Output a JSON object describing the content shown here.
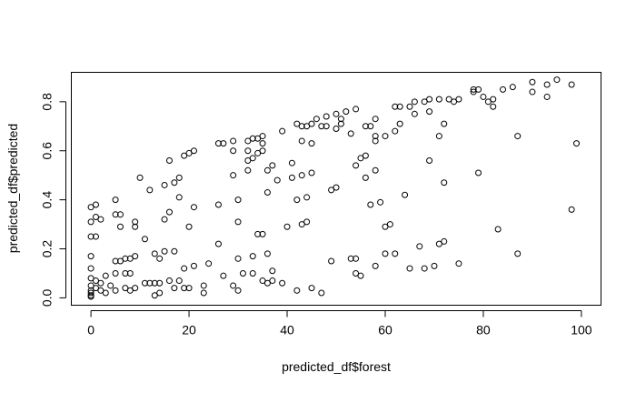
{
  "chart_data": {
    "type": "scatter",
    "title": "",
    "xlabel": "predicted_df$forest",
    "ylabel": "predicted_df$predicted",
    "xlim": [
      -4,
      104
    ],
    "ylim": [
      -0.03,
      0.92
    ],
    "xticks": [
      0,
      20,
      40,
      60,
      80,
      100
    ],
    "yticks": [
      0.0,
      0.2,
      0.4,
      0.6,
      0.8
    ],
    "xtick_labels": [
      "0",
      "20",
      "40",
      "60",
      "80",
      "100"
    ],
    "ytick_labels": [
      "0.0",
      "0.2",
      "0.4",
      "0.6",
      "0.8"
    ],
    "grid": false,
    "legend": null,
    "marker": "open-circle",
    "points": [
      {
        "x": 0,
        "y": 0.37
      },
      {
        "x": 1,
        "y": 0.38
      },
      {
        "x": 0,
        "y": 0.31
      },
      {
        "x": 1,
        "y": 0.33
      },
      {
        "x": 0,
        "y": 0.25
      },
      {
        "x": 1,
        "y": 0.25
      },
      {
        "x": 0,
        "y": 0.17
      },
      {
        "x": 0,
        "y": 0.12
      },
      {
        "x": 0,
        "y": 0.08
      },
      {
        "x": 1,
        "y": 0.07
      },
      {
        "x": 0,
        "y": 0.05
      },
      {
        "x": 0,
        "y": 0.03
      },
      {
        "x": 0,
        "y": 0.02
      },
      {
        "x": 0,
        "y": 0.01
      },
      {
        "x": 0,
        "y": 0.005
      },
      {
        "x": 1,
        "y": 0.04
      },
      {
        "x": 2,
        "y": 0.06
      },
      {
        "x": 2,
        "y": 0.03
      },
      {
        "x": 3,
        "y": 0.02
      },
      {
        "x": 3,
        "y": 0.09
      },
      {
        "x": 2,
        "y": 0.32
      },
      {
        "x": 4,
        "y": 0.05
      },
      {
        "x": 5,
        "y": 0.4
      },
      {
        "x": 5,
        "y": 0.34
      },
      {
        "x": 5,
        "y": 0.15
      },
      {
        "x": 5,
        "y": 0.1
      },
      {
        "x": 5,
        "y": 0.03
      },
      {
        "x": 6,
        "y": 0.34
      },
      {
        "x": 6,
        "y": 0.29
      },
      {
        "x": 6,
        "y": 0.15
      },
      {
        "x": 7,
        "y": 0.16
      },
      {
        "x": 7,
        "y": 0.1
      },
      {
        "x": 7,
        "y": 0.04
      },
      {
        "x": 8,
        "y": 0.16
      },
      {
        "x": 8,
        "y": 0.1
      },
      {
        "x": 8,
        "y": 0.03
      },
      {
        "x": 9,
        "y": 0.31
      },
      {
        "x": 9,
        "y": 0.29
      },
      {
        "x": 9,
        "y": 0.17
      },
      {
        "x": 9,
        "y": 0.04
      },
      {
        "x": 10,
        "y": 0.49
      },
      {
        "x": 11,
        "y": 0.24
      },
      {
        "x": 11,
        "y": 0.06
      },
      {
        "x": 12,
        "y": 0.44
      },
      {
        "x": 12,
        "y": 0.06
      },
      {
        "x": 13,
        "y": 0.18
      },
      {
        "x": 13,
        "y": 0.06
      },
      {
        "x": 13,
        "y": 0.01
      },
      {
        "x": 14,
        "y": 0.16
      },
      {
        "x": 14,
        "y": 0.06
      },
      {
        "x": 14,
        "y": 0.02
      },
      {
        "x": 15,
        "y": 0.46
      },
      {
        "x": 15,
        "y": 0.32
      },
      {
        "x": 15,
        "y": 0.19
      },
      {
        "x": 16,
        "y": 0.56
      },
      {
        "x": 16,
        "y": 0.35
      },
      {
        "x": 16,
        "y": 0.07
      },
      {
        "x": 17,
        "y": 0.47
      },
      {
        "x": 17,
        "y": 0.19
      },
      {
        "x": 17,
        "y": 0.04
      },
      {
        "x": 18,
        "y": 0.49
      },
      {
        "x": 18,
        "y": 0.41
      },
      {
        "x": 18,
        "y": 0.07
      },
      {
        "x": 19,
        "y": 0.58
      },
      {
        "x": 19,
        "y": 0.12
      },
      {
        "x": 19,
        "y": 0.04
      },
      {
        "x": 20,
        "y": 0.59
      },
      {
        "x": 20,
        "y": 0.29
      },
      {
        "x": 20,
        "y": 0.04
      },
      {
        "x": 21,
        "y": 0.6
      },
      {
        "x": 21,
        "y": 0.37
      },
      {
        "x": 21,
        "y": 0.13
      },
      {
        "x": 23,
        "y": 0.05
      },
      {
        "x": 23,
        "y": 0.02
      },
      {
        "x": 24,
        "y": 0.14
      },
      {
        "x": 26,
        "y": 0.63
      },
      {
        "x": 26,
        "y": 0.38
      },
      {
        "x": 26,
        "y": 0.22
      },
      {
        "x": 27,
        "y": 0.63
      },
      {
        "x": 27,
        "y": 0.09
      },
      {
        "x": 29,
        "y": 0.64
      },
      {
        "x": 29,
        "y": 0.6
      },
      {
        "x": 29,
        "y": 0.5
      },
      {
        "x": 29,
        "y": 0.05
      },
      {
        "x": 30,
        "y": 0.4
      },
      {
        "x": 30,
        "y": 0.31
      },
      {
        "x": 30,
        "y": 0.16
      },
      {
        "x": 30,
        "y": 0.03
      },
      {
        "x": 31,
        "y": 0.1
      },
      {
        "x": 32,
        "y": 0.64
      },
      {
        "x": 32,
        "y": 0.6
      },
      {
        "x": 32,
        "y": 0.56
      },
      {
        "x": 32,
        "y": 0.52
      },
      {
        "x": 33,
        "y": 0.65
      },
      {
        "x": 33,
        "y": 0.57
      },
      {
        "x": 33,
        "y": 0.17
      },
      {
        "x": 33,
        "y": 0.1
      },
      {
        "x": 34,
        "y": 0.65
      },
      {
        "x": 34,
        "y": 0.59
      },
      {
        "x": 34,
        "y": 0.26
      },
      {
        "x": 35,
        "y": 0.66
      },
      {
        "x": 35,
        "y": 0.63
      },
      {
        "x": 35,
        "y": 0.6
      },
      {
        "x": 35,
        "y": 0.26
      },
      {
        "x": 35,
        "y": 0.07
      },
      {
        "x": 36,
        "y": 0.52
      },
      {
        "x": 36,
        "y": 0.43
      },
      {
        "x": 36,
        "y": 0.18
      },
      {
        "x": 36,
        "y": 0.06
      },
      {
        "x": 37,
        "y": 0.54
      },
      {
        "x": 37,
        "y": 0.11
      },
      {
        "x": 37,
        "y": 0.07
      },
      {
        "x": 38,
        "y": 0.48
      },
      {
        "x": 39,
        "y": 0.68
      },
      {
        "x": 39,
        "y": 0.06
      },
      {
        "x": 40,
        "y": 0.29
      },
      {
        "x": 41,
        "y": 0.55
      },
      {
        "x": 41,
        "y": 0.49
      },
      {
        "x": 42,
        "y": 0.71
      },
      {
        "x": 42,
        "y": 0.4
      },
      {
        "x": 42,
        "y": 0.03
      },
      {
        "x": 43,
        "y": 0.7
      },
      {
        "x": 43,
        "y": 0.64
      },
      {
        "x": 43,
        "y": 0.5
      },
      {
        "x": 43,
        "y": 0.3
      },
      {
        "x": 44,
        "y": 0.7
      },
      {
        "x": 44,
        "y": 0.41
      },
      {
        "x": 44,
        "y": 0.31
      },
      {
        "x": 45,
        "y": 0.71
      },
      {
        "x": 45,
        "y": 0.63
      },
      {
        "x": 45,
        "y": 0.51
      },
      {
        "x": 45,
        "y": 0.04
      },
      {
        "x": 46,
        "y": 0.73
      },
      {
        "x": 47,
        "y": 0.7
      },
      {
        "x": 47,
        "y": 0.02
      },
      {
        "x": 48,
        "y": 0.74
      },
      {
        "x": 48,
        "y": 0.7
      },
      {
        "x": 49,
        "y": 0.44
      },
      {
        "x": 49,
        "y": 0.15
      },
      {
        "x": 50,
        "y": 0.75
      },
      {
        "x": 50,
        "y": 0.69
      },
      {
        "x": 50,
        "y": 0.45
      },
      {
        "x": 51,
        "y": 0.73
      },
      {
        "x": 51,
        "y": 0.71
      },
      {
        "x": 52,
        "y": 0.76
      },
      {
        "x": 53,
        "y": 0.67
      },
      {
        "x": 53,
        "y": 0.16
      },
      {
        "x": 54,
        "y": 0.77
      },
      {
        "x": 54,
        "y": 0.54
      },
      {
        "x": 54,
        "y": 0.16
      },
      {
        "x": 54,
        "y": 0.1
      },
      {
        "x": 55,
        "y": 0.57
      },
      {
        "x": 55,
        "y": 0.09
      },
      {
        "x": 56,
        "y": 0.7
      },
      {
        "x": 56,
        "y": 0.58
      },
      {
        "x": 56,
        "y": 0.49
      },
      {
        "x": 57,
        "y": 0.7
      },
      {
        "x": 57,
        "y": 0.38
      },
      {
        "x": 58,
        "y": 0.73
      },
      {
        "x": 58,
        "y": 0.66
      },
      {
        "x": 58,
        "y": 0.64
      },
      {
        "x": 58,
        "y": 0.52
      },
      {
        "x": 58,
        "y": 0.13
      },
      {
        "x": 59,
        "y": 0.39
      },
      {
        "x": 60,
        "y": 0.66
      },
      {
        "x": 60,
        "y": 0.29
      },
      {
        "x": 60,
        "y": 0.18
      },
      {
        "x": 61,
        "y": 0.3
      },
      {
        "x": 62,
        "y": 0.78
      },
      {
        "x": 62,
        "y": 0.68
      },
      {
        "x": 62,
        "y": 0.18
      },
      {
        "x": 63,
        "y": 0.78
      },
      {
        "x": 63,
        "y": 0.71
      },
      {
        "x": 64,
        "y": 0.42
      },
      {
        "x": 65,
        "y": 0.78
      },
      {
        "x": 65,
        "y": 0.12
      },
      {
        "x": 66,
        "y": 0.8
      },
      {
        "x": 66,
        "y": 0.75
      },
      {
        "x": 67,
        "y": 0.21
      },
      {
        "x": 68,
        "y": 0.8
      },
      {
        "x": 68,
        "y": 0.12
      },
      {
        "x": 69,
        "y": 0.81
      },
      {
        "x": 69,
        "y": 0.76
      },
      {
        "x": 69,
        "y": 0.56
      },
      {
        "x": 70,
        "y": 0.13
      },
      {
        "x": 71,
        "y": 0.81
      },
      {
        "x": 71,
        "y": 0.66
      },
      {
        "x": 71,
        "y": 0.22
      },
      {
        "x": 72,
        "y": 0.71
      },
      {
        "x": 72,
        "y": 0.47
      },
      {
        "x": 72,
        "y": 0.23
      },
      {
        "x": 73,
        "y": 0.81
      },
      {
        "x": 74,
        "y": 0.8
      },
      {
        "x": 75,
        "y": 0.81
      },
      {
        "x": 75,
        "y": 0.14
      },
      {
        "x": 78,
        "y": 0.85
      },
      {
        "x": 78,
        "y": 0.84
      },
      {
        "x": 79,
        "y": 0.85
      },
      {
        "x": 79,
        "y": 0.51
      },
      {
        "x": 80,
        "y": 0.82
      },
      {
        "x": 81,
        "y": 0.8
      },
      {
        "x": 82,
        "y": 0.81
      },
      {
        "x": 82,
        "y": 0.78
      },
      {
        "x": 83,
        "y": 0.28
      },
      {
        "x": 84,
        "y": 0.85
      },
      {
        "x": 86,
        "y": 0.86
      },
      {
        "x": 87,
        "y": 0.66
      },
      {
        "x": 87,
        "y": 0.18
      },
      {
        "x": 90,
        "y": 0.88
      },
      {
        "x": 90,
        "y": 0.84
      },
      {
        "x": 93,
        "y": 0.87
      },
      {
        "x": 93,
        "y": 0.82
      },
      {
        "x": 95,
        "y": 0.89
      },
      {
        "x": 98,
        "y": 0.87
      },
      {
        "x": 98,
        "y": 0.36
      },
      {
        "x": 99,
        "y": 0.63
      }
    ]
  }
}
